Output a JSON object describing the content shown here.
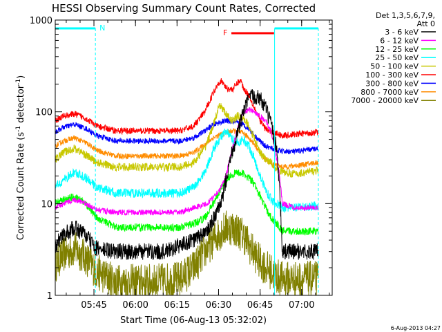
{
  "chart_data": {
    "type": "line",
    "title": "HESSI Observing Summary Count Rates, Corrected",
    "xlabel": "Start Time (06-Aug-13 05:32:02)",
    "ylabel_main": "Corrected Count Rate (s",
    "ylabel_sup1": "-1",
    "ylabel_mid": " detector",
    "ylabel_sup2": "-1",
    "ylabel_end": ")",
    "y_scale": "log",
    "ylim": [
      1,
      1000
    ],
    "xlim_minutes": [
      0,
      100
    ],
    "x_ticks": [
      {
        "m": 13.97,
        "label": "05:45"
      },
      {
        "m": 28.97,
        "label": "06:00"
      },
      {
        "m": 43.97,
        "label": "06:15"
      },
      {
        "m": 58.97,
        "label": "06:30"
      },
      {
        "m": 73.97,
        "label": "06:45"
      },
      {
        "m": 88.97,
        "label": "07:00"
      }
    ],
    "y_tick_labels": [
      {
        "v": 1,
        "label": "1"
      },
      {
        "v": 10,
        "label": "10"
      },
      {
        "v": 100,
        "label": "100"
      },
      {
        "v": 1000,
        "label": "1000"
      }
    ],
    "legend": {
      "placement": "right",
      "title_line1": "Det 1,3,5,6,7,9,",
      "title_line2": "Att 0"
    },
    "series": [
      {
        "name": "3 - 6 keV",
        "color": "#000000",
        "amp": 0.6,
        "noise": 0.15,
        "points": [
          [
            0,
            3.5
          ],
          [
            3,
            4.5
          ],
          [
            7,
            5.5
          ],
          [
            11,
            4.5
          ],
          [
            15,
            3.2
          ],
          [
            22,
            3
          ],
          [
            30,
            3
          ],
          [
            40,
            3
          ],
          [
            45,
            3.5
          ],
          [
            50,
            4
          ],
          [
            55,
            5
          ],
          [
            60,
            10
          ],
          [
            63,
            30
          ],
          [
            66,
            60
          ],
          [
            68,
            100
          ],
          [
            70,
            140
          ],
          [
            72,
            150
          ],
          [
            74,
            140
          ],
          [
            76,
            110
          ],
          [
            78,
            70
          ],
          [
            80,
            40
          ],
          [
            81,
            15
          ],
          [
            82,
            3
          ],
          [
            87,
            3
          ],
          [
            92,
            3
          ],
          [
            95,
            3
          ]
        ]
      },
      {
        "name": "6 - 12 keV",
        "color": "#ff00ff",
        "amp": 0.3,
        "noise": 0.1,
        "points": [
          [
            0,
            9
          ],
          [
            3,
            10
          ],
          [
            7,
            11
          ],
          [
            11,
            10
          ],
          [
            15,
            8.5
          ],
          [
            22,
            8
          ],
          [
            35,
            8
          ],
          [
            45,
            8
          ],
          [
            50,
            9
          ],
          [
            55,
            10
          ],
          [
            60,
            15
          ],
          [
            62,
            22
          ],
          [
            64,
            40
          ],
          [
            66,
            70
          ],
          [
            68,
            100
          ],
          [
            70,
            105
          ],
          [
            72,
            100
          ],
          [
            74,
            90
          ],
          [
            76,
            80
          ],
          [
            78,
            60
          ],
          [
            80,
            30
          ],
          [
            81,
            20
          ],
          [
            82,
            10
          ],
          [
            87,
            9
          ],
          [
            95,
            9
          ]
        ]
      },
      {
        "name": "12 - 25 keV",
        "color": "#00ff00",
        "amp": 0.7,
        "noise": 0.06,
        "points": [
          [
            0,
            10
          ],
          [
            3,
            11
          ],
          [
            7,
            12
          ],
          [
            11,
            10
          ],
          [
            15,
            7
          ],
          [
            22,
            5.5
          ],
          [
            35,
            5.5
          ],
          [
            45,
            5.5
          ],
          [
            50,
            6
          ],
          [
            54,
            7
          ],
          [
            57,
            10
          ],
          [
            60,
            15
          ],
          [
            63,
            20
          ],
          [
            66,
            22
          ],
          [
            68,
            21
          ],
          [
            70,
            19
          ],
          [
            72,
            16
          ],
          [
            74,
            12
          ],
          [
            76,
            9
          ],
          [
            78,
            7
          ],
          [
            80,
            6
          ],
          [
            82,
            5
          ],
          [
            87,
            5
          ],
          [
            95,
            5
          ]
        ]
      },
      {
        "name": "25 - 50 keV",
        "color": "#00ffff",
        "amp": 1.0,
        "noise": 0.05,
        "points": [
          [
            0,
            15
          ],
          [
            3,
            18
          ],
          [
            7,
            22
          ],
          [
            11,
            19
          ],
          [
            15,
            15
          ],
          [
            22,
            13
          ],
          [
            35,
            13
          ],
          [
            45,
            13
          ],
          [
            50,
            15
          ],
          [
            54,
            22
          ],
          [
            57,
            38
          ],
          [
            60,
            55
          ],
          [
            62,
            60
          ],
          [
            64,
            50
          ],
          [
            66,
            46
          ],
          [
            68,
            50
          ],
          [
            70,
            42
          ],
          [
            72,
            30
          ],
          [
            74,
            20
          ],
          [
            76,
            14
          ],
          [
            78,
            11
          ],
          [
            80,
            10
          ],
          [
            82,
            9
          ],
          [
            87,
            9
          ],
          [
            95,
            9.5
          ]
        ]
      },
      {
        "name": "50 - 100 keV",
        "color": "#c8c800",
        "amp": 1.0,
        "noise": 0.045,
        "points": [
          [
            0,
            30
          ],
          [
            3,
            36
          ],
          [
            7,
            40
          ],
          [
            11,
            34
          ],
          [
            15,
            28
          ],
          [
            22,
            25
          ],
          [
            35,
            25
          ],
          [
            45,
            25
          ],
          [
            50,
            28
          ],
          [
            54,
            40
          ],
          [
            57,
            70
          ],
          [
            59,
            110
          ],
          [
            60,
            115
          ],
          [
            62,
            90
          ],
          [
            64,
            80
          ],
          [
            66,
            90
          ],
          [
            68,
            85
          ],
          [
            70,
            70
          ],
          [
            72,
            50
          ],
          [
            74,
            36
          ],
          [
            76,
            30
          ],
          [
            78,
            28
          ],
          [
            80,
            24
          ],
          [
            82,
            22
          ],
          [
            87,
            21
          ],
          [
            95,
            23
          ]
        ]
      },
      {
        "name": "100 - 300 keV",
        "color": "#ff0000",
        "amp": 1.0,
        "noise": 0.035,
        "points": [
          [
            0,
            80
          ],
          [
            3,
            90
          ],
          [
            7,
            95
          ],
          [
            11,
            85
          ],
          [
            15,
            70
          ],
          [
            22,
            62
          ],
          [
            35,
            62
          ],
          [
            45,
            62
          ],
          [
            50,
            70
          ],
          [
            54,
            100
          ],
          [
            57,
            160
          ],
          [
            59,
            210
          ],
          [
            60,
            215
          ],
          [
            62,
            180
          ],
          [
            64,
            175
          ],
          [
            66,
            210
          ],
          [
            67,
            220
          ],
          [
            68,
            180
          ],
          [
            70,
            150
          ],
          [
            72,
            110
          ],
          [
            74,
            80
          ],
          [
            76,
            65
          ],
          [
            78,
            60
          ],
          [
            80,
            58
          ],
          [
            82,
            55
          ],
          [
            87,
            57
          ],
          [
            95,
            60
          ]
        ]
      },
      {
        "name": "300 - 800 keV",
        "color": "#0000ff",
        "amp": 1.0,
        "noise": 0.03,
        "points": [
          [
            0,
            60
          ],
          [
            3,
            68
          ],
          [
            7,
            73
          ],
          [
            11,
            66
          ],
          [
            15,
            55
          ],
          [
            22,
            48
          ],
          [
            35,
            48
          ],
          [
            45,
            48
          ],
          [
            50,
            52
          ],
          [
            54,
            62
          ],
          [
            57,
            72
          ],
          [
            60,
            78
          ],
          [
            62,
            80
          ],
          [
            64,
            78
          ],
          [
            66,
            75
          ],
          [
            68,
            72
          ],
          [
            70,
            65
          ],
          [
            72,
            55
          ],
          [
            74,
            48
          ],
          [
            76,
            42
          ],
          [
            78,
            40
          ],
          [
            80,
            38
          ],
          [
            82,
            37
          ],
          [
            87,
            37
          ],
          [
            95,
            40
          ]
        ]
      },
      {
        "name": "800 - 7000 keV",
        "color": "#ff8c00",
        "amp": 1.0,
        "noise": 0.03,
        "points": [
          [
            0,
            42
          ],
          [
            3,
            48
          ],
          [
            7,
            52
          ],
          [
            11,
            46
          ],
          [
            15,
            38
          ],
          [
            22,
            33
          ],
          [
            35,
            33
          ],
          [
            45,
            33
          ],
          [
            50,
            36
          ],
          [
            54,
            44
          ],
          [
            57,
            52
          ],
          [
            60,
            57
          ],
          [
            62,
            60
          ],
          [
            64,
            62
          ],
          [
            66,
            61
          ],
          [
            68,
            58
          ],
          [
            70,
            52
          ],
          [
            72,
            44
          ],
          [
            74,
            36
          ],
          [
            76,
            30
          ],
          [
            78,
            27
          ],
          [
            80,
            26
          ],
          [
            82,
            25
          ],
          [
            87,
            26
          ],
          [
            95,
            28
          ]
        ]
      },
      {
        "name": "7000 - 20000 keV",
        "color": "#808000",
        "amp": 0.8,
        "noise": 0.25,
        "points": [
          [
            0,
            2.2
          ],
          [
            3,
            2.8
          ],
          [
            7,
            3.2
          ],
          [
            11,
            2.6
          ],
          [
            15,
            1.8
          ],
          [
            22,
            1.4
          ],
          [
            35,
            1.4
          ],
          [
            45,
            1.5
          ],
          [
            50,
            2
          ],
          [
            54,
            3
          ],
          [
            57,
            4
          ],
          [
            60,
            5
          ],
          [
            62,
            5.5
          ],
          [
            64,
            5.5
          ],
          [
            66,
            5
          ],
          [
            68,
            4.5
          ],
          [
            70,
            3.5
          ],
          [
            72,
            2.8
          ],
          [
            74,
            2.3
          ],
          [
            76,
            2
          ],
          [
            78,
            1.8
          ],
          [
            80,
            1.6
          ],
          [
            82,
            1.5
          ],
          [
            87,
            1.5
          ],
          [
            95,
            1.5
          ]
        ]
      }
    ],
    "intervals": {
      "night_label": "N",
      "flare_label": "F",
      "night_color": "#00ffff",
      "flare_color": "#ff0000",
      "night_bars": [
        [
          0,
          14.5
        ],
        [
          79.2,
          95
        ]
      ],
      "flare_bar": [
        63.6,
        79
      ]
    },
    "timestamp": "6-Aug-2013 04:27"
  }
}
